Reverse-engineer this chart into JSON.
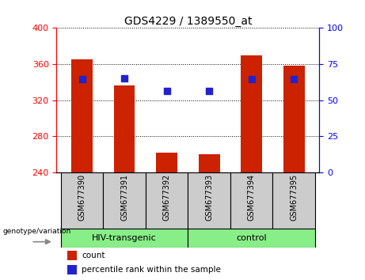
{
  "title": "GDS4229 / 1389550_at",
  "samples": [
    "GSM677390",
    "GSM677391",
    "GSM677392",
    "GSM677393",
    "GSM677394",
    "GSM677395"
  ],
  "bar_values": [
    365,
    336,
    262,
    260,
    370,
    358
  ],
  "blue_values": [
    343,
    344,
    330,
    330,
    343,
    343
  ],
  "bar_color": "#cc2200",
  "blue_color": "#2222cc",
  "baseline": 240,
  "ylim_left": [
    240,
    400
  ],
  "ylim_right": [
    0,
    100
  ],
  "yticks_left": [
    240,
    280,
    320,
    360,
    400
  ],
  "yticks_right": [
    0,
    25,
    50,
    75,
    100
  ],
  "group_label": "genotype/variation",
  "legend_count": "count",
  "legend_percentile": "percentile rank within the sample",
  "group_color": "#88ee88",
  "label_box_color": "#cccccc",
  "bar_width": 0.5
}
